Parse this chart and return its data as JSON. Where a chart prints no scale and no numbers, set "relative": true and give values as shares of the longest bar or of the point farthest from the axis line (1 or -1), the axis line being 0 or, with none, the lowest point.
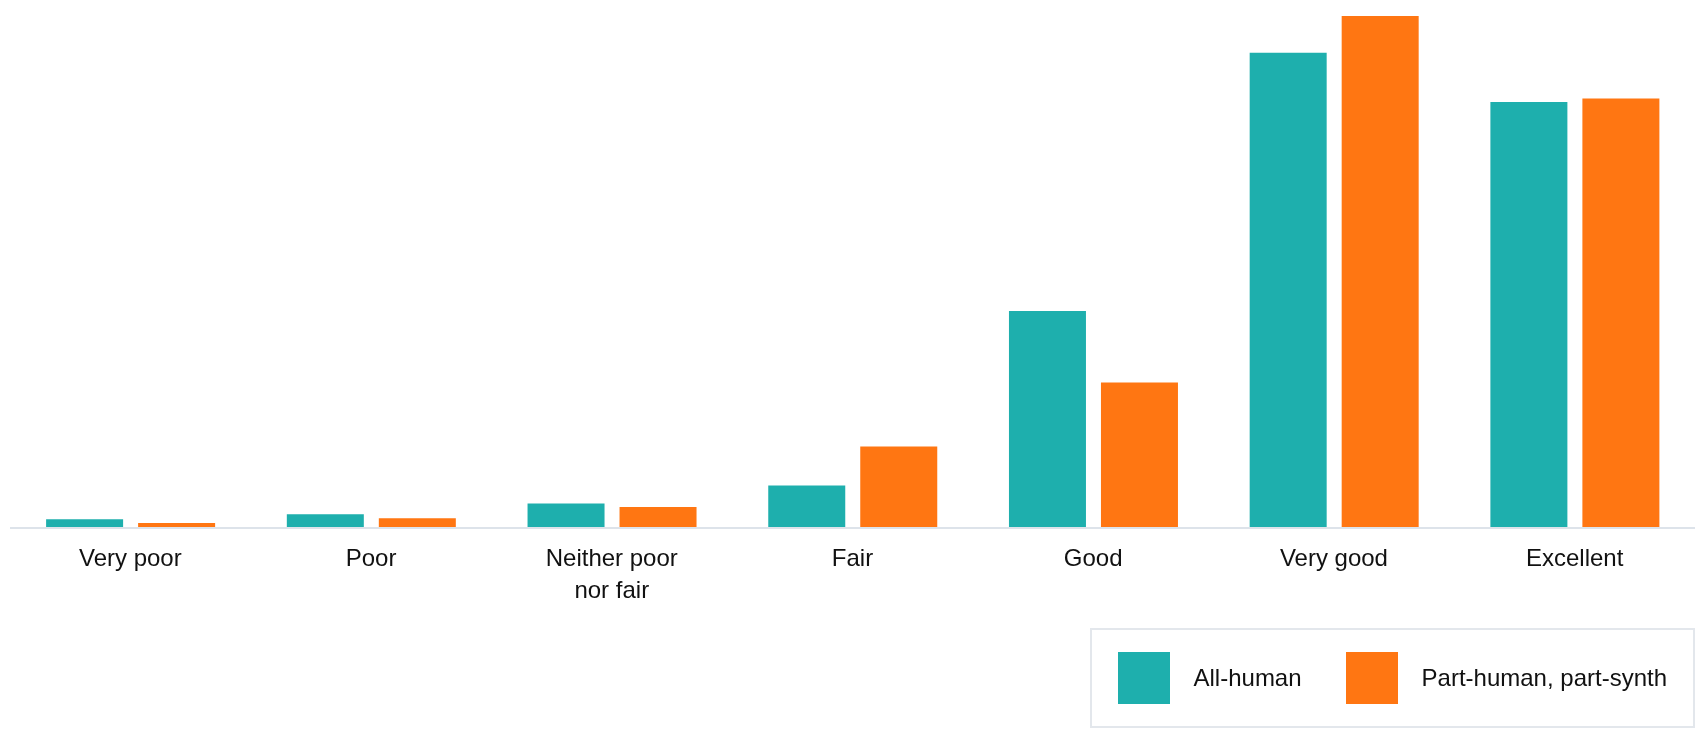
{
  "chart_data": {
    "type": "bar",
    "relative": true,
    "categories": [
      "Very poor",
      "Poor",
      "Neither poor nor fair",
      "Fair",
      "Good",
      "Very good",
      "Excellent"
    ],
    "series": [
      {
        "name": "All-human",
        "color": "#1eafad",
        "values": [
          0.017,
          0.027,
          0.048,
          0.083,
          0.424,
          0.928,
          0.832
        ]
      },
      {
        "name": "Part-human, part-synth",
        "color": "#ff7612",
        "values": [
          0.01,
          0.019,
          0.041,
          0.159,
          0.284,
          1,
          0.839
        ]
      }
    ],
    "legend": "bottom right",
    "grid": false
  }
}
